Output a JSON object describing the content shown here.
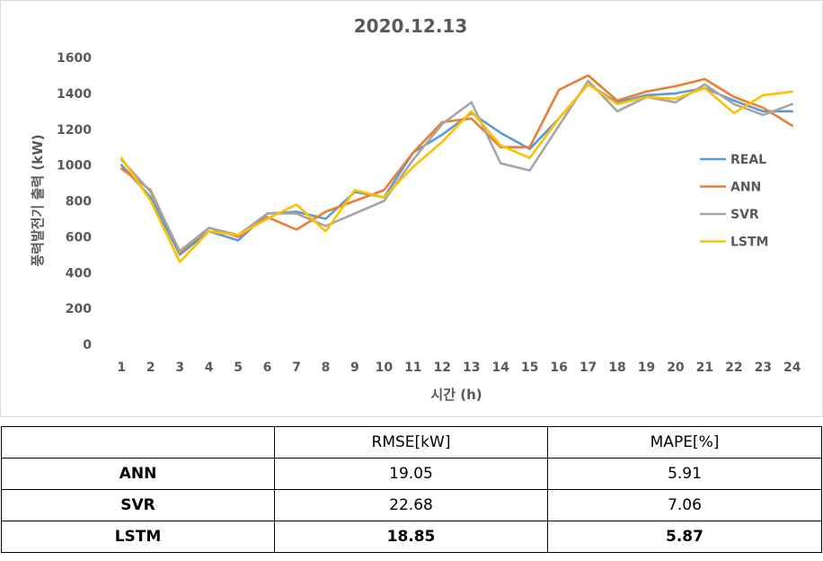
{
  "chart_data": {
    "type": "line",
    "title": "2020.12.13",
    "xlabel": "시간 (h)",
    "ylabel": "풍력발전기 출력 (kW)",
    "ylim": [
      0,
      1600
    ],
    "yticks": [
      0,
      200,
      400,
      600,
      800,
      1000,
      1200,
      1400,
      1600
    ],
    "categories": [
      "1",
      "2",
      "3",
      "4",
      "5",
      "6",
      "7",
      "8",
      "9",
      "10",
      "11",
      "12",
      "13",
      "14",
      "15",
      "16",
      "17",
      "18",
      "19",
      "20",
      "21",
      "22",
      "23",
      "24"
    ],
    "grid": false,
    "legend": "right",
    "series": [
      {
        "name": "REAL",
        "color": "#5b9bd5",
        "values": [
          1000,
          820,
          500,
          630,
          580,
          730,
          740,
          700,
          850,
          820,
          1070,
          1170,
          1290,
          1180,
          1090,
          1260,
          1450,
          1350,
          1390,
          1400,
          1430,
          1360,
          1300,
          1300
        ]
      },
      {
        "name": "ANN",
        "color": "#ed7d31",
        "values": [
          980,
          860,
          510,
          650,
          600,
          710,
          640,
          740,
          800,
          860,
          1070,
          1240,
          1260,
          1100,
          1100,
          1420,
          1500,
          1360,
          1410,
          1440,
          1480,
          1380,
          1320,
          1220
        ]
      },
      {
        "name": "SVR",
        "color": "#a5a5a5",
        "values": [
          1030,
          850,
          520,
          650,
          610,
          730,
          730,
          660,
          730,
          800,
          1030,
          1230,
          1350,
          1010,
          970,
          1220,
          1470,
          1300,
          1380,
          1350,
          1450,
          1340,
          1280,
          1340
        ]
      },
      {
        "name": "LSTM",
        "color": "#ffc000",
        "values": [
          1040,
          800,
          460,
          630,
          610,
          700,
          780,
          630,
          860,
          820,
          990,
          1130,
          1300,
          1110,
          1040,
          1260,
          1450,
          1340,
          1380,
          1370,
          1430,
          1290,
          1390,
          1410
        ]
      }
    ]
  },
  "table": {
    "headers": [
      "",
      "RMSE[kW]",
      "MAPE[%]"
    ],
    "rows": [
      {
        "model": "ANN",
        "rmse": "19.05",
        "mape": "5.91"
      },
      {
        "model": "SVR",
        "rmse": "22.68",
        "mape": "7.06"
      },
      {
        "model": "LSTM",
        "rmse": "18.85",
        "mape": "5.87"
      }
    ]
  }
}
